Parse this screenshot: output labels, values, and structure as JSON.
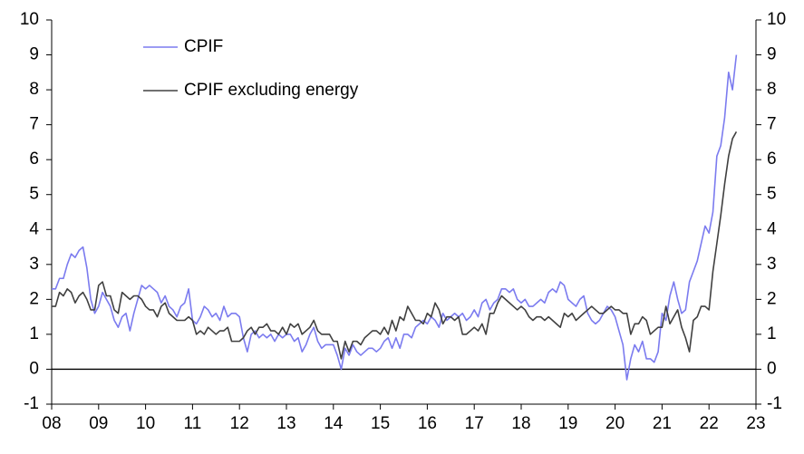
{
  "chart_data": {
    "type": "line",
    "x": [
      2008.0,
      2008.083,
      2008.167,
      2008.25,
      2008.333,
      2008.417,
      2008.5,
      2008.583,
      2008.667,
      2008.75,
      2008.833,
      2008.917,
      2009.0,
      2009.083,
      2009.167,
      2009.25,
      2009.333,
      2009.417,
      2009.5,
      2009.583,
      2009.667,
      2009.75,
      2009.833,
      2009.917,
      2010.0,
      2010.083,
      2010.167,
      2010.25,
      2010.333,
      2010.417,
      2010.5,
      2010.583,
      2010.667,
      2010.75,
      2010.833,
      2010.917,
      2011.0,
      2011.083,
      2011.167,
      2011.25,
      2011.333,
      2011.417,
      2011.5,
      2011.583,
      2011.667,
      2011.75,
      2011.833,
      2011.917,
      2012.0,
      2012.083,
      2012.167,
      2012.25,
      2012.333,
      2012.417,
      2012.5,
      2012.583,
      2012.667,
      2012.75,
      2012.833,
      2012.917,
      2013.0,
      2013.083,
      2013.167,
      2013.25,
      2013.333,
      2013.417,
      2013.5,
      2013.583,
      2013.667,
      2013.75,
      2013.833,
      2013.917,
      2014.0,
      2014.083,
      2014.167,
      2014.25,
      2014.333,
      2014.417,
      2014.5,
      2014.583,
      2014.667,
      2014.75,
      2014.833,
      2014.917,
      2015.0,
      2015.083,
      2015.167,
      2015.25,
      2015.333,
      2015.417,
      2015.5,
      2015.583,
      2015.667,
      2015.75,
      2015.833,
      2015.917,
      2016.0,
      2016.083,
      2016.167,
      2016.25,
      2016.333,
      2016.417,
      2016.5,
      2016.583,
      2016.667,
      2016.75,
      2016.833,
      2016.917,
      2017.0,
      2017.083,
      2017.167,
      2017.25,
      2017.333,
      2017.417,
      2017.5,
      2017.583,
      2017.667,
      2017.75,
      2017.833,
      2017.917,
      2018.0,
      2018.083,
      2018.167,
      2018.25,
      2018.333,
      2018.417,
      2018.5,
      2018.583,
      2018.667,
      2018.75,
      2018.833,
      2018.917,
      2019.0,
      2019.083,
      2019.167,
      2019.25,
      2019.333,
      2019.417,
      2019.5,
      2019.583,
      2019.667,
      2019.75,
      2019.833,
      2019.917,
      2020.0,
      2020.083,
      2020.167,
      2020.25,
      2020.333,
      2020.417,
      2020.5,
      2020.583,
      2020.667,
      2020.75,
      2020.833,
      2020.917,
      2021.0,
      2021.083,
      2021.167,
      2021.25,
      2021.333,
      2021.417,
      2021.5,
      2021.583,
      2021.667,
      2021.75,
      2021.833,
      2021.917,
      2022.0,
      2022.083,
      2022.167,
      2022.25,
      2022.333,
      2022.417,
      2022.5,
      2022.583
    ],
    "series": [
      {
        "name": "CPIF",
        "color": "#7b7bef",
        "values": [
          2.3,
          2.3,
          2.6,
          2.6,
          3.0,
          3.3,
          3.2,
          3.4,
          3.5,
          2.9,
          2.0,
          1.6,
          1.8,
          2.2,
          2.0,
          1.8,
          1.4,
          1.2,
          1.5,
          1.6,
          1.1,
          1.6,
          2.0,
          2.4,
          2.3,
          2.4,
          2.3,
          2.2,
          1.9,
          2.1,
          1.8,
          1.7,
          1.5,
          1.8,
          1.9,
          2.3,
          1.4,
          1.3,
          1.5,
          1.8,
          1.7,
          1.5,
          1.6,
          1.4,
          1.8,
          1.5,
          1.6,
          1.6,
          1.5,
          0.9,
          0.5,
          1.0,
          1.1,
          0.9,
          1.0,
          0.9,
          1.0,
          0.8,
          1.0,
          0.9,
          1.0,
          1.0,
          0.8,
          0.9,
          0.5,
          0.7,
          1.0,
          1.2,
          0.8,
          0.6,
          0.7,
          0.7,
          0.7,
          0.4,
          0.0,
          0.6,
          0.4,
          0.7,
          0.5,
          0.4,
          0.5,
          0.6,
          0.6,
          0.5,
          0.6,
          0.8,
          0.9,
          0.6,
          0.9,
          0.6,
          1.0,
          1.0,
          0.9,
          1.2,
          1.3,
          1.4,
          1.3,
          1.5,
          1.4,
          1.2,
          1.6,
          1.4,
          1.5,
          1.6,
          1.5,
          1.6,
          1.4,
          1.5,
          1.7,
          1.5,
          1.9,
          2.0,
          1.7,
          1.9,
          2.0,
          2.3,
          2.3,
          2.2,
          2.3,
          2.0,
          1.9,
          2.0,
          1.8,
          1.8,
          1.9,
          2.0,
          1.9,
          2.2,
          2.3,
          2.2,
          2.5,
          2.4,
          2.0,
          1.9,
          1.8,
          2.0,
          2.1,
          1.6,
          1.4,
          1.3,
          1.4,
          1.6,
          1.8,
          1.7,
          1.5,
          1.1,
          0.7,
          -0.3,
          0.3,
          0.7,
          0.5,
          0.8,
          0.3,
          0.3,
          0.2,
          0.5,
          1.6,
          1.4,
          2.1,
          2.5,
          2.0,
          1.6,
          1.7,
          2.5,
          2.8,
          3.1,
          3.6,
          4.1,
          3.9,
          4.5,
          6.1,
          6.4,
          7.2,
          8.5,
          8.0,
          9.0
        ]
      },
      {
        "name": "CPIF excluding energy",
        "color": "#404040",
        "values": [
          1.8,
          1.8,
          2.2,
          2.1,
          2.3,
          2.2,
          1.9,
          2.1,
          2.2,
          2.0,
          1.7,
          1.7,
          2.4,
          2.5,
          2.1,
          2.1,
          1.7,
          1.6,
          2.2,
          2.1,
          2.0,
          2.1,
          2.1,
          2.0,
          1.8,
          1.7,
          1.7,
          1.5,
          1.8,
          1.9,
          1.6,
          1.5,
          1.4,
          1.4,
          1.4,
          1.5,
          1.4,
          1.0,
          1.1,
          1.0,
          1.2,
          1.1,
          1.0,
          1.1,
          1.1,
          1.2,
          0.8,
          0.8,
          0.8,
          0.9,
          1.1,
          1.2,
          1.0,
          1.2,
          1.2,
          1.3,
          1.1,
          1.1,
          1.0,
          1.2,
          1.0,
          1.3,
          1.2,
          1.3,
          1.0,
          1.1,
          1.2,
          1.4,
          1.1,
          1.0,
          1.0,
          1.0,
          0.8,
          0.8,
          0.3,
          0.8,
          0.5,
          0.8,
          0.8,
          0.7,
          0.9,
          1.0,
          1.1,
          1.1,
          1.0,
          1.2,
          1.0,
          1.4,
          1.1,
          1.5,
          1.4,
          1.8,
          1.6,
          1.4,
          1.4,
          1.3,
          1.6,
          1.5,
          1.9,
          1.7,
          1.3,
          1.5,
          1.5,
          1.4,
          1.5,
          1.0,
          1.0,
          1.1,
          1.2,
          1.1,
          1.3,
          1.0,
          1.6,
          1.6,
          1.9,
          2.1,
          2.0,
          1.9,
          1.8,
          1.7,
          1.8,
          1.7,
          1.5,
          1.4,
          1.5,
          1.5,
          1.4,
          1.5,
          1.4,
          1.3,
          1.2,
          1.6,
          1.5,
          1.6,
          1.4,
          1.5,
          1.6,
          1.7,
          1.8,
          1.7,
          1.6,
          1.6,
          1.7,
          1.8,
          1.7,
          1.7,
          1.6,
          1.6,
          1.0,
          1.3,
          1.3,
          1.5,
          1.4,
          1.0,
          1.1,
          1.2,
          1.2,
          1.8,
          1.3,
          1.5,
          1.7,
          1.2,
          0.9,
          0.5,
          1.4,
          1.5,
          1.8,
          1.8,
          1.7,
          2.8,
          3.6,
          4.4,
          5.3,
          6.1,
          6.6,
          6.8
        ]
      }
    ],
    "xlim": [
      2008,
      2023
    ],
    "xticks": [
      {
        "value": 2008,
        "label": "08"
      },
      {
        "value": 2009,
        "label": "09"
      },
      {
        "value": 2010,
        "label": "10"
      },
      {
        "value": 2011,
        "label": "11"
      },
      {
        "value": 2012,
        "label": "12"
      },
      {
        "value": 2013,
        "label": "13"
      },
      {
        "value": 2014,
        "label": "14"
      },
      {
        "value": 2015,
        "label": "15"
      },
      {
        "value": 2016,
        "label": "16"
      },
      {
        "value": 2017,
        "label": "17"
      },
      {
        "value": 2018,
        "label": "18"
      },
      {
        "value": 2019,
        "label": "19"
      },
      {
        "value": 2020,
        "label": "20"
      },
      {
        "value": 2021,
        "label": "21"
      },
      {
        "value": 2022,
        "label": "22"
      },
      {
        "value": 2023,
        "label": "23"
      }
    ],
    "ylim": [
      -1,
      10
    ],
    "yticks": [
      -1,
      0,
      1,
      2,
      3,
      4,
      5,
      6,
      7,
      8,
      9,
      10
    ],
    "y2lim": [
      -1,
      10
    ],
    "y2ticks": [
      -1,
      0,
      1,
      2,
      3,
      4,
      5,
      6,
      7,
      8,
      9,
      10
    ],
    "legend": "upper-left"
  }
}
